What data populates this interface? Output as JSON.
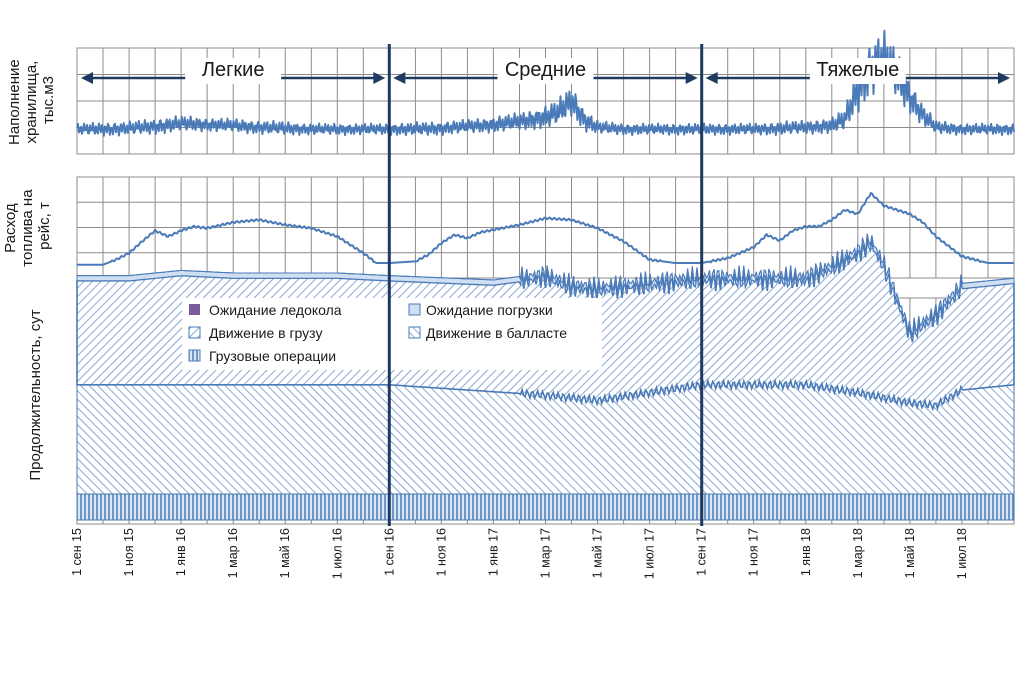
{
  "chart_data": {
    "type": "line",
    "time_range": [
      "2015-09-01",
      "2018-08-31"
    ],
    "x_tick_labels": [
      "1 сен 15",
      "1 ноя 15",
      "1 янв 16",
      "1 мар 16",
      "1 май 16",
      "1 июл 16",
      "1 сен 16",
      "1 ноя 16",
      "1 янв 17",
      "1 мар 17",
      "1 май 17",
      "1 июл 17",
      "1 сен 17",
      "1 ноя 17",
      "1 янв 18",
      "1 мар 18",
      "1 май 18",
      "1 июл 18"
    ],
    "x_tick_months": [
      0,
      2,
      4,
      6,
      8,
      10,
      12,
      14,
      16,
      18,
      20,
      22,
      24,
      26,
      28,
      30,
      32,
      34
    ],
    "seasons": [
      {
        "label": "Легкие",
        "start_month": 0,
        "end_month": 12
      },
      {
        "label": "Средние",
        "start_month": 12,
        "end_month": 24
      },
      {
        "label": "Тяжелые",
        "start_month": 24,
        "end_month": 36
      }
    ],
    "panels": [
      {
        "id": "storage",
        "ylabel_lines": [
          "Наполнение",
          "хранилища,",
          "тыс.м3"
        ],
        "description": "Oscillating storage fill level with a moderate spike in Apr 2017 and a large spike Mar–May 2018",
        "series": [
          {
            "name": "Наполнение хранилища",
            "x_month": [
              0,
              1,
              2,
              3,
              4,
              5,
              6,
              7,
              8,
              9,
              10,
              11,
              12,
              13,
              14,
              15,
              16,
              17,
              18,
              18.5,
              19,
              19.5,
              20,
              21,
              22,
              23,
              24,
              25,
              26,
              27,
              28,
              29,
              29.5,
              30,
              30.5,
              31,
              31.5,
              32,
              32.5,
              33,
              34,
              35,
              36
            ],
            "level": [
              0.2,
              0.2,
              0.21,
              0.23,
              0.26,
              0.25,
              0.24,
              0.22,
              0.21,
              0.2,
              0.2,
              0.2,
              0.2,
              0.2,
              0.21,
              0.23,
              0.25,
              0.28,
              0.33,
              0.38,
              0.5,
              0.3,
              0.22,
              0.2,
              0.2,
              0.2,
              0.2,
              0.2,
              0.2,
              0.21,
              0.22,
              0.24,
              0.3,
              0.62,
              0.85,
              0.95,
              0.78,
              0.55,
              0.35,
              0.22,
              0.2,
              0.2,
              0.2
            ],
            "amplitude": [
              0.05,
              0.06,
              0.06,
              0.07,
              0.07,
              0.06,
              0.06,
              0.06,
              0.06,
              0.05,
              0.05,
              0.05,
              0.05,
              0.06,
              0.06,
              0.06,
              0.07,
              0.08,
              0.1,
              0.12,
              0.14,
              0.1,
              0.06,
              0.05,
              0.05,
              0.05,
              0.05,
              0.05,
              0.05,
              0.06,
              0.06,
              0.07,
              0.1,
              0.2,
              0.25,
              0.25,
              0.22,
              0.15,
              0.1,
              0.06,
              0.05,
              0.05,
              0.05
            ]
          }
        ]
      },
      {
        "id": "fuel",
        "ylabel_lines": [
          "Расход",
          "топлива на",
          "рейс, т"
        ],
        "description": "Seasonal fuel consumption per voyage, peaking in winter, highest in 2018",
        "series": [
          {
            "name": "Расход топлива на рейс",
            "x_month": [
              0,
              1,
              1.5,
              2,
              2.5,
              3,
              3.5,
              4,
              4.5,
              5,
              6,
              7,
              8,
              9,
              10,
              11,
              11.5,
              12,
              13,
              13.5,
              14,
              14.5,
              15,
              15.5,
              16,
              17,
              18,
              19,
              20,
              21,
              22,
              23,
              24,
              25,
              26,
              26.5,
              27,
              27.5,
              28,
              28.5,
              29,
              29.5,
              30,
              30.5,
              31,
              32,
              32.5,
              33,
              34,
              35,
              36
            ],
            "value": [
              0.04,
              0.04,
              0.1,
              0.18,
              0.32,
              0.45,
              0.38,
              0.45,
              0.5,
              0.48,
              0.55,
              0.58,
              0.52,
              0.48,
              0.38,
              0.18,
              0.06,
              0.06,
              0.08,
              0.16,
              0.3,
              0.4,
              0.36,
              0.43,
              0.46,
              0.52,
              0.6,
              0.58,
              0.48,
              0.32,
              0.1,
              0.06,
              0.06,
              0.12,
              0.25,
              0.4,
              0.33,
              0.45,
              0.5,
              0.5,
              0.58,
              0.7,
              0.65,
              0.9,
              0.75,
              0.65,
              0.55,
              0.38,
              0.14,
              0.06,
              0.06
            ]
          }
        ]
      },
      {
        "id": "duration",
        "ylabel_lines": [
          "Продолжительность, сут"
        ],
        "type": "stacked_area",
        "legend": [
          {
            "label": "Ожидание ледокола",
            "color": "#7a5a9a",
            "pattern": "solid"
          },
          {
            "label": "Ожидание погрузки",
            "color": "#cfe0f3",
            "pattern": "solid"
          },
          {
            "label": "Движение в грузу",
            "color": "#4a7ab8",
            "pattern": "diag-up"
          },
          {
            "label": "Движение в балласте",
            "color": "#4a7ab8",
            "pattern": "diag-down"
          },
          {
            "label": "Грузовые операции",
            "color": "#4a7ab8",
            "pattern": "vertical"
          }
        ],
        "series": [
          {
            "name": "Грузовые операции",
            "x_month": [
              0,
              36
            ],
            "value": [
              1.0,
              1.0
            ]
          },
          {
            "name": "Движение в балласте",
            "x_month": [
              0,
              6,
              12,
              18,
              20,
              22,
              24,
              28,
              30,
              32,
              33,
              34,
              36
            ],
            "value": [
              4.2,
              4.2,
              4.2,
              3.8,
              3.6,
              3.9,
              4.2,
              4.2,
              3.9,
              3.5,
              3.4,
              4.0,
              4.2
            ]
          },
          {
            "name": "Движение в грузу",
            "x_month": [
              0,
              2,
              4,
              6,
              8,
              10,
              12,
              16,
              18,
              19,
              20,
              22,
              24,
              28,
              29,
              30,
              30.5,
              31,
              32,
              32.5,
              33,
              34,
              36
            ],
            "value": [
              4.0,
              4.0,
              4.2,
              4.1,
              4.1,
              4.1,
              4.0,
              4.1,
              4.5,
              4.2,
              4.2,
              4.1,
              4.0,
              4.0,
              4.6,
              5.3,
              5.8,
              5.0,
              2.6,
              3.0,
              3.4,
              3.9,
              3.9
            ]
          },
          {
            "name": "Ожидание погрузки",
            "x_month": [
              0,
              36
            ],
            "value": [
              0.2,
              0.2
            ]
          },
          {
            "name": "Ожидание ледокола",
            "x_month": [
              0,
              36
            ],
            "value": [
              0,
              0
            ]
          }
        ]
      }
    ]
  }
}
